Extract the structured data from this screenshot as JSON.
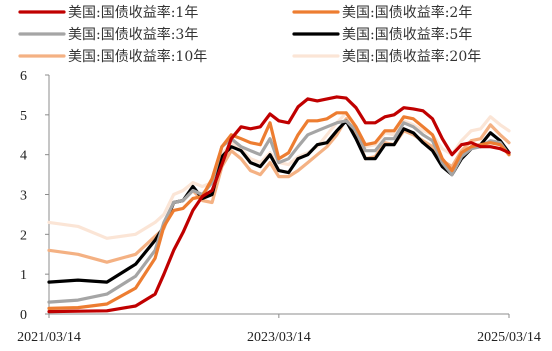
{
  "chart_data": {
    "type": "line",
    "title": "",
    "xlabel": "",
    "ylabel": "",
    "x_tick_labels": [
      "2021/03/14",
      "2023/03/14",
      "2025/03/14"
    ],
    "x_range": [
      "2021/03/14",
      "2025/03/14"
    ],
    "ylim": [
      0,
      6
    ],
    "y_ticks": [
      "0",
      "1",
      "2",
      "3",
      "4",
      "5",
      "6"
    ],
    "grid": false,
    "legend_position": "top",
    "dates": [
      "2021/03/14",
      "2021/06/14",
      "2021/09/14",
      "2021/12/14",
      "2022/02/14",
      "2022/03/14",
      "2022/04/14",
      "2022/05/14",
      "2022/06/14",
      "2022/07/14",
      "2022/08/14",
      "2022/09/14",
      "2022/10/14",
      "2022/11/14",
      "2022/12/14",
      "2023/01/14",
      "2023/02/14",
      "2023/03/14",
      "2023/04/14",
      "2023/05/14",
      "2023/06/14",
      "2023/07/14",
      "2023/08/14",
      "2023/09/14",
      "2023/10/14",
      "2023/11/14",
      "2023/12/14",
      "2024/01/14",
      "2024/02/14",
      "2024/03/14",
      "2024/04/14",
      "2024/05/14",
      "2024/06/14",
      "2024/07/14",
      "2024/08/14",
      "2024/09/14",
      "2024/10/14",
      "2024/11/14",
      "2024/12/14",
      "2025/01/14",
      "2025/02/14",
      "2025/03/14"
    ],
    "series": [
      {
        "name": "美国:国债收益率:1年",
        "color": "#c00000",
        "values": [
          0.06,
          0.07,
          0.08,
          0.2,
          0.5,
          1.0,
          1.6,
          2.05,
          2.6,
          2.95,
          3.1,
          3.75,
          4.4,
          4.7,
          4.65,
          4.7,
          5.02,
          4.85,
          4.8,
          5.2,
          5.4,
          5.35,
          5.4,
          5.45,
          5.42,
          5.18,
          4.8,
          4.8,
          4.95,
          5.0,
          5.18,
          5.15,
          5.1,
          4.9,
          4.4,
          4.0,
          4.25,
          4.3,
          4.2,
          4.2,
          4.15,
          4.05
        ]
      },
      {
        "name": "美国:国债收益率:2年",
        "color": "#ed7d31",
        "values": [
          0.14,
          0.16,
          0.25,
          0.65,
          1.4,
          2.2,
          2.6,
          2.65,
          2.9,
          2.95,
          3.4,
          4.2,
          4.5,
          4.4,
          4.3,
          4.25,
          4.8,
          3.9,
          4.05,
          4.5,
          4.85,
          4.85,
          4.9,
          5.05,
          5.05,
          4.7,
          4.25,
          4.3,
          4.6,
          4.6,
          4.95,
          4.9,
          4.7,
          4.5,
          3.9,
          3.6,
          4.05,
          4.2,
          4.25,
          4.3,
          4.25,
          4.0
        ]
      },
      {
        "name": "美国:国债收益率:3年",
        "color": "#a5a5a5",
        "values": [
          0.3,
          0.35,
          0.5,
          0.95,
          1.6,
          2.3,
          2.8,
          2.85,
          3.1,
          3.0,
          3.3,
          4.2,
          4.4,
          4.2,
          4.1,
          4.0,
          4.4,
          3.8,
          3.9,
          4.2,
          4.5,
          4.6,
          4.7,
          4.8,
          4.85,
          4.6,
          4.1,
          4.1,
          4.4,
          4.4,
          4.8,
          4.7,
          4.5,
          4.35,
          3.8,
          3.5,
          3.95,
          4.15,
          4.2,
          4.35,
          4.3,
          4.0
        ]
      },
      {
        "name": "美国:国债收益率:5年",
        "color": "#000000",
        "values": [
          0.8,
          0.85,
          0.8,
          1.25,
          1.85,
          2.2,
          2.8,
          2.85,
          3.2,
          2.9,
          3.0,
          3.95,
          4.2,
          4.1,
          3.8,
          3.7,
          4.0,
          3.6,
          3.55,
          3.9,
          4.0,
          4.25,
          4.3,
          4.6,
          4.85,
          4.4,
          3.9,
          3.9,
          4.25,
          4.25,
          4.65,
          4.55,
          4.3,
          4.1,
          3.7,
          3.5,
          3.9,
          4.15,
          4.25,
          4.55,
          4.35,
          4.05
        ]
      },
      {
        "name": "美国:国债收益率:10年",
        "color": "#f4b183",
        "values": [
          1.6,
          1.5,
          1.3,
          1.5,
          1.95,
          2.15,
          2.8,
          2.85,
          3.1,
          2.85,
          2.8,
          3.7,
          4.1,
          3.9,
          3.6,
          3.5,
          3.8,
          3.45,
          3.45,
          3.6,
          3.8,
          4.0,
          4.2,
          4.5,
          4.9,
          4.5,
          3.9,
          3.95,
          4.3,
          4.25,
          4.6,
          4.5,
          4.35,
          4.2,
          3.85,
          3.7,
          4.1,
          4.35,
          4.4,
          4.75,
          4.5,
          4.3
        ]
      },
      {
        "name": "美国:国债收益率:20年",
        "color": "#fbe5d6",
        "values": [
          2.3,
          2.2,
          1.9,
          2.0,
          2.3,
          2.5,
          3.0,
          3.1,
          3.3,
          3.2,
          3.3,
          4.0,
          4.3,
          4.15,
          3.9,
          3.8,
          4.05,
          3.8,
          3.75,
          3.95,
          4.05,
          4.2,
          4.5,
          4.8,
          5.05,
          4.7,
          4.2,
          4.25,
          4.55,
          4.5,
          4.85,
          4.75,
          4.6,
          4.5,
          4.15,
          4.0,
          4.35,
          4.6,
          4.65,
          4.95,
          4.75,
          4.6
        ]
      }
    ]
  }
}
